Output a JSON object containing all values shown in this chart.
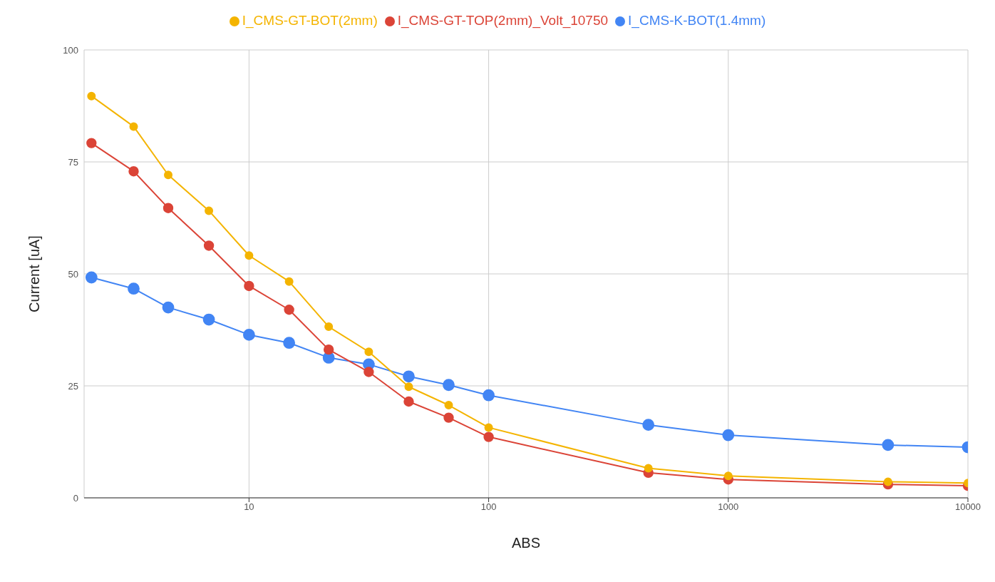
{
  "chart_data": {
    "type": "line",
    "xlabel": "ABS",
    "ylabel": "Current [uA]",
    "log": "x",
    "grid": true,
    "legend": "top",
    "marker": "circle",
    "line_style": "solid",
    "x": [
      2.2,
      3.3,
      4.6,
      6.8,
      10,
      14.7,
      21.5,
      31.6,
      46.4,
      68.1,
      100,
      464,
      1000,
      4640,
      10000
    ],
    "xlim": [
      2.05,
      10000
    ],
    "xticks": [
      10,
      100,
      1000,
      10000
    ],
    "ylim": [
      0,
      100
    ],
    "yticks": [
      0,
      25,
      50,
      75,
      100
    ],
    "series": [
      {
        "name": "I_CMS-K-BOT(1.4mm)",
        "color": "#4285f4",
        "values": [
          49.2,
          46.7,
          42.5,
          39.8,
          36.4,
          34.6,
          31.3,
          29.8,
          27.1,
          25.2,
          22.9,
          16.3,
          14.0,
          11.8,
          11.3
        ]
      },
      {
        "name": "I_CMS-GT-TOP(2mm)_Volt_10750",
        "color": "#db4437",
        "values": [
          79.2,
          72.9,
          64.7,
          56.3,
          47.3,
          42.0,
          33.1,
          28.1,
          21.5,
          17.9,
          13.6,
          5.6,
          4.1,
          3.0,
          2.7
        ]
      },
      {
        "name": "I_CMS-GT-BOT(2mm)",
        "color": "#f4b400",
        "values": [
          89.7,
          82.9,
          72.1,
          64.1,
          54.1,
          48.3,
          38.2,
          32.6,
          24.8,
          20.7,
          15.7,
          6.6,
          4.9,
          3.6,
          3.3
        ]
      }
    ]
  }
}
